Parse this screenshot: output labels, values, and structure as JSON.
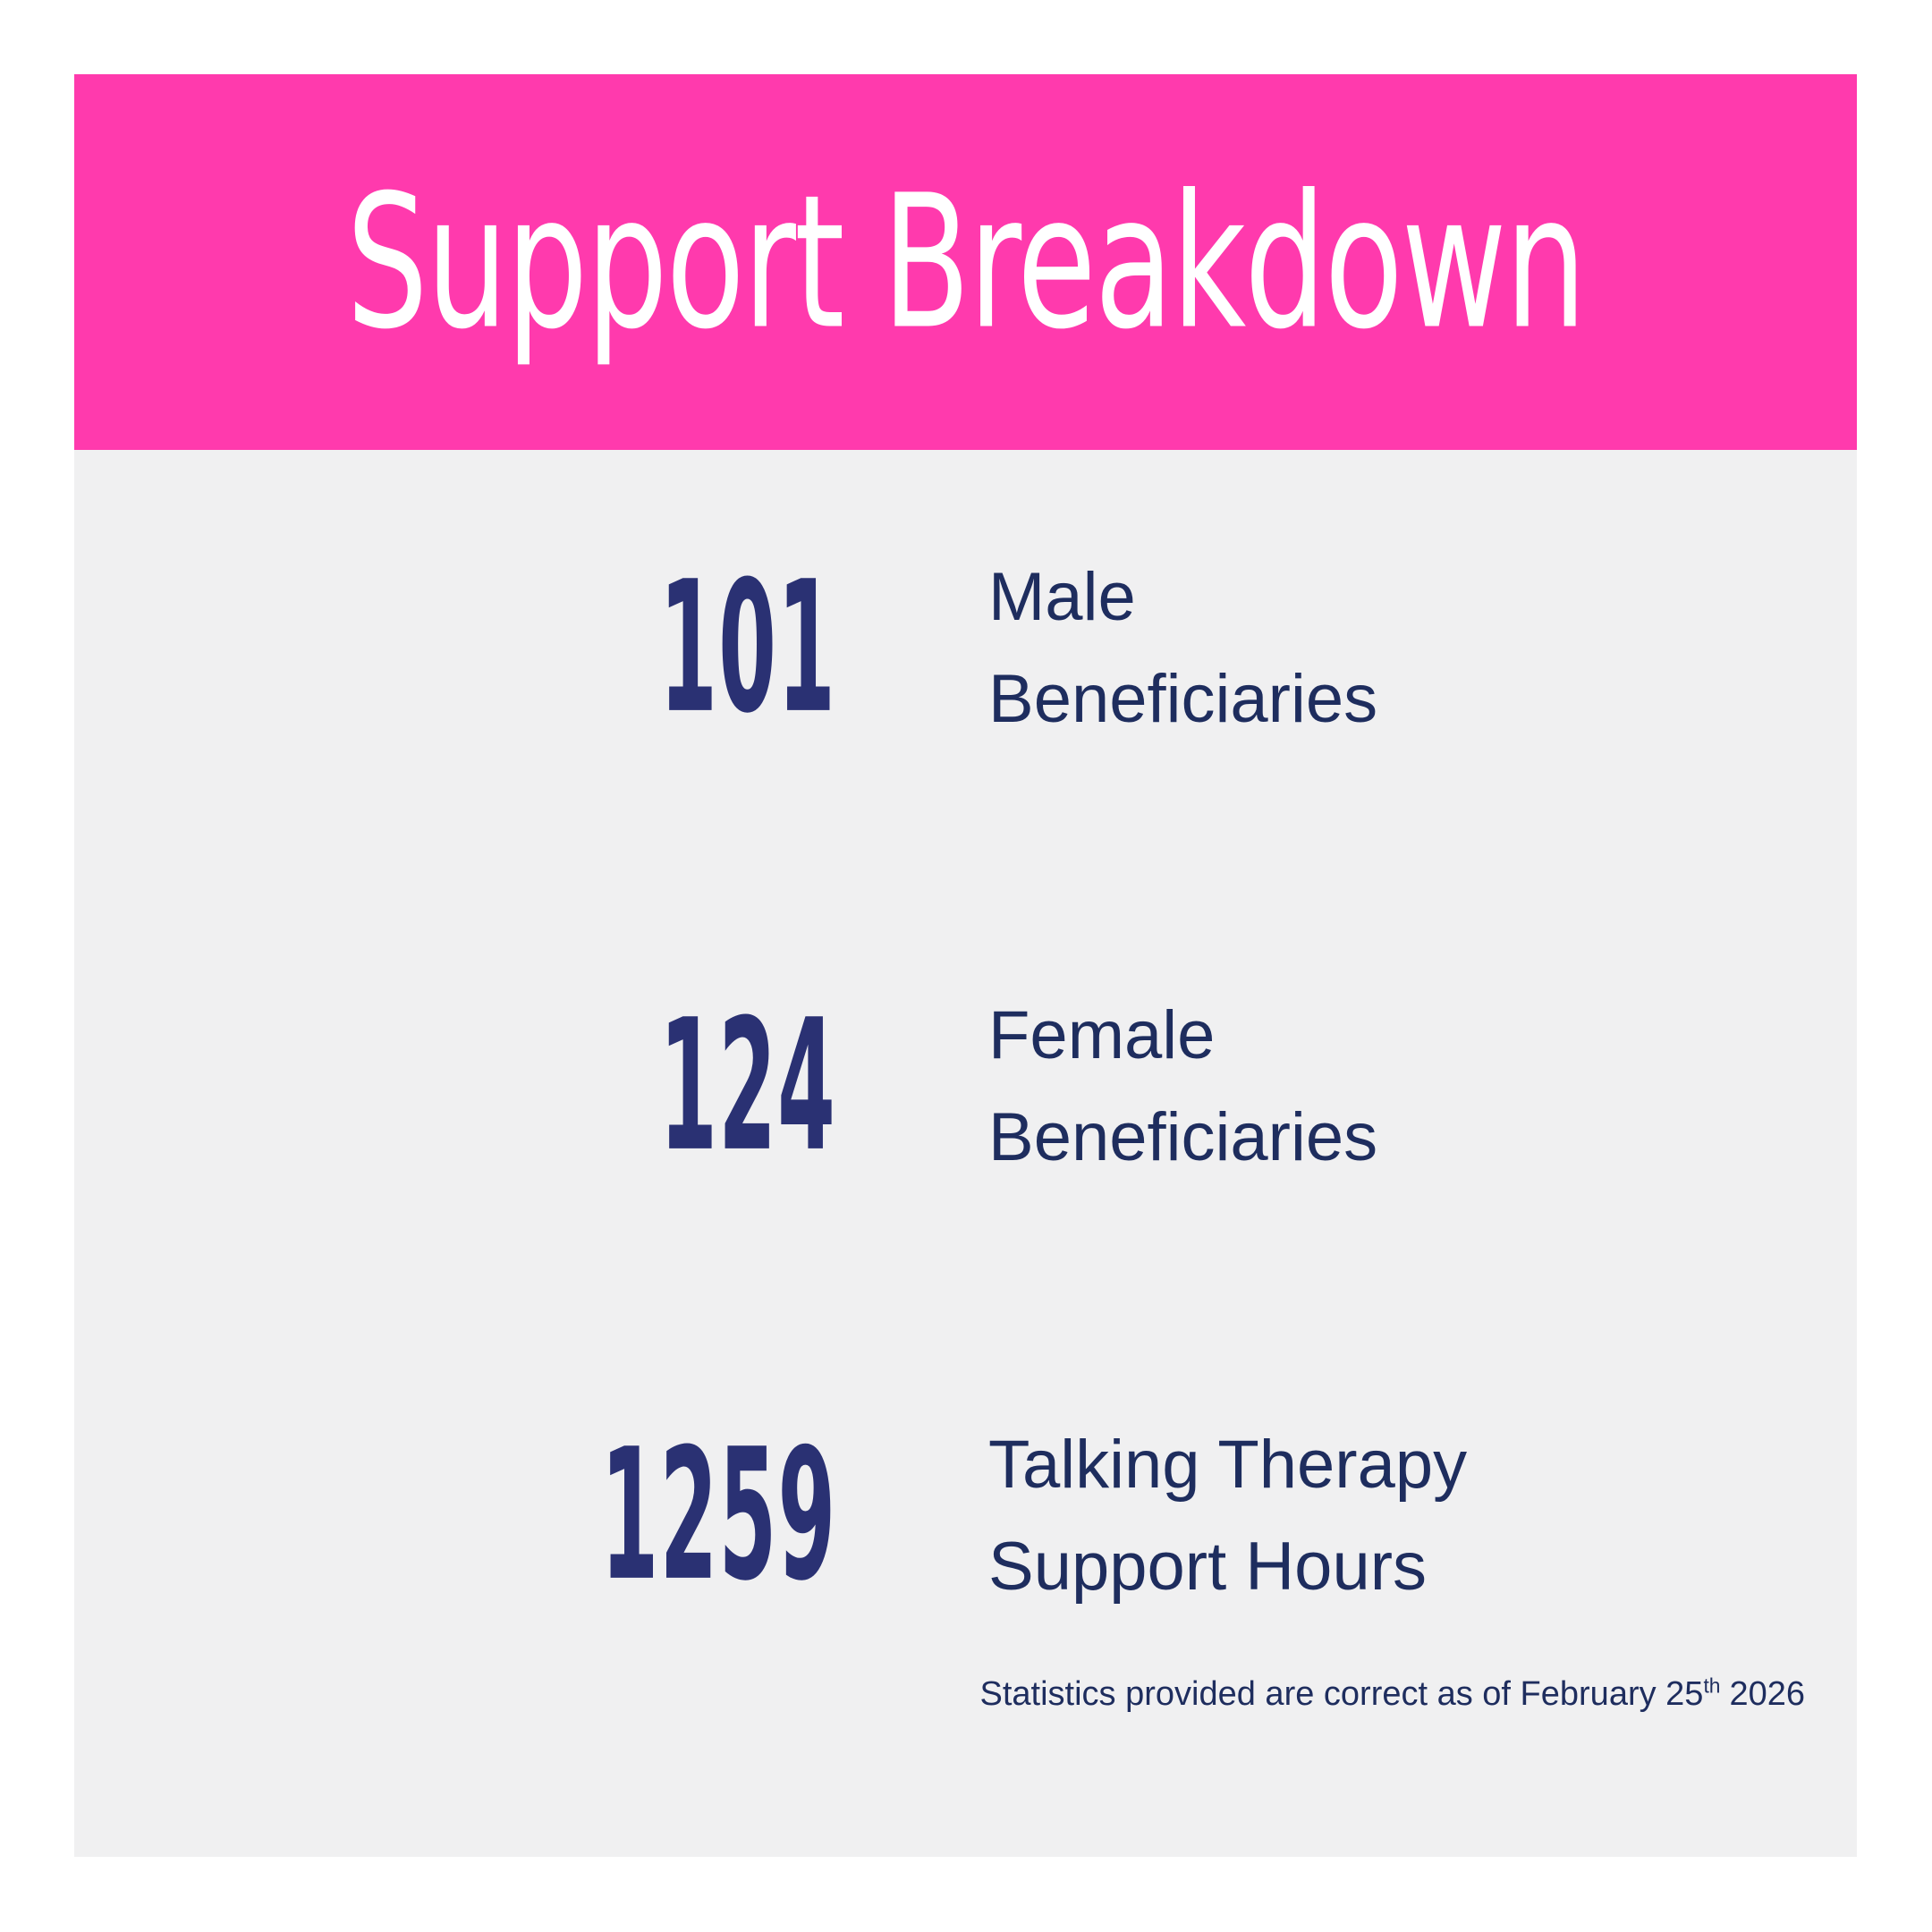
{
  "card": {
    "header": {
      "title": "Support Breakdown",
      "background_color": "#ff3aad",
      "text_color": "#ffffff"
    },
    "stats": [
      {
        "value": "101",
        "label_lines": [
          "Male",
          "Beneficiaries"
        ]
      },
      {
        "value": "124",
        "label_lines": [
          "Female",
          "Beneficiaries"
        ]
      },
      {
        "value": "1259",
        "label_lines": [
          "Talking Therapy",
          "Support Hours"
        ]
      }
    ],
    "footer": {
      "text_before_sup": "Statistics provided are correct as of February 25",
      "sup": "th",
      "text_after_sup": "2026"
    },
    "colors": {
      "accent_pink": "#ff3aad",
      "number_navy": "#2a3173",
      "label_navy": "#1e2d5e",
      "body_background": "#f0f0f1",
      "page_background": "#ffffff"
    }
  }
}
